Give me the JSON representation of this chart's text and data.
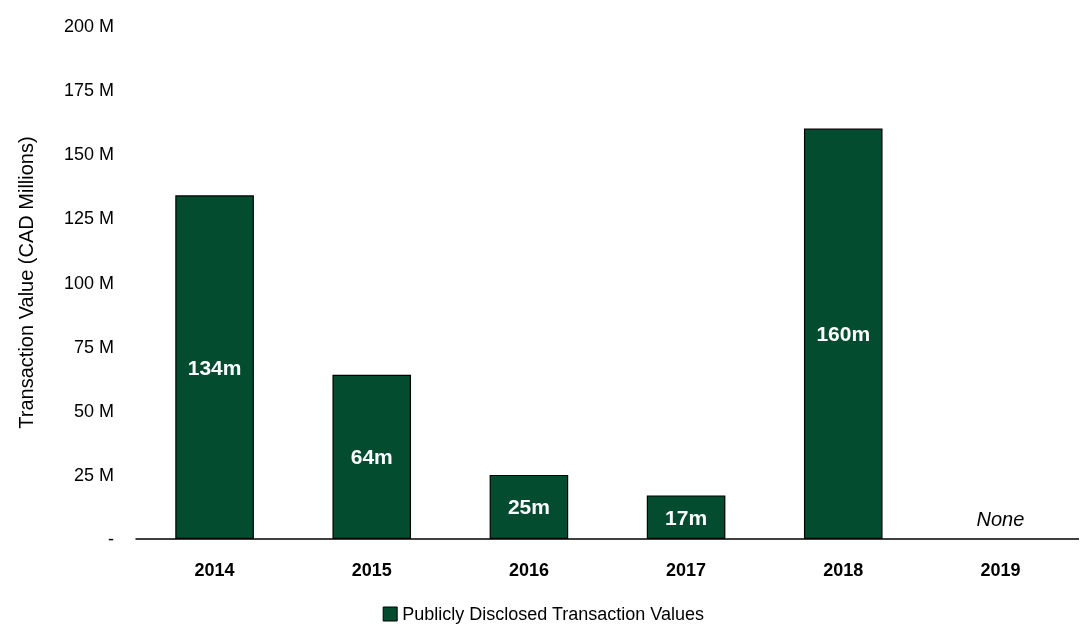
{
  "chart_data": {
    "type": "bar",
    "ylabel": "Transaction Value (CAD Millions)",
    "categories": [
      "2014",
      "2015",
      "2016",
      "2017",
      "2018",
      "2019"
    ],
    "series": [
      {
        "name": "Publicly Disclosed Transaction Values",
        "color": "#034c2f",
        "values": [
          134,
          64,
          25,
          17,
          160,
          0
        ],
        "value_labels": [
          "134m",
          "64m",
          "25m",
          "17m",
          "160m",
          "None"
        ]
      }
    ],
    "ylim": [
      0,
      200
    ],
    "yticks": [
      {
        "value": 0,
        "label": "-"
      },
      {
        "value": 25,
        "label": "25 M"
      },
      {
        "value": 50,
        "label": "50 M"
      },
      {
        "value": 75,
        "label": "75 M"
      },
      {
        "value": 100,
        "label": "100 M"
      },
      {
        "value": 125,
        "label": "125 M"
      },
      {
        "value": 150,
        "label": "150 M"
      },
      {
        "value": 175,
        "label": "175 M"
      },
      {
        "value": 200,
        "label": "200 M"
      }
    ],
    "grid": false,
    "legend": "bottom"
  }
}
